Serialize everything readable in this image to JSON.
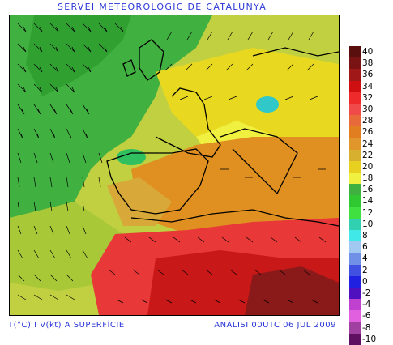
{
  "header": {
    "title": "SERVEI METEOROLÒGIC DE CATALUNYA"
  },
  "footer": {
    "variable_label": "T(°C) I V(kt) A SUPERFÍCIE",
    "analysis_label": "ANÀLISI 00UTC 06 JUL 2009"
  },
  "legend": {
    "items": [
      {
        "label": "40",
        "color": "#5a0f0f"
      },
      {
        "label": "38",
        "color": "#7a1414"
      },
      {
        "label": "36",
        "color": "#a01818"
      },
      {
        "label": "34",
        "color": "#d01010"
      },
      {
        "label": "32",
        "color": "#ee2a2a"
      },
      {
        "label": "30",
        "color": "#f04a4a"
      },
      {
        "label": "28",
        "color": "#e86a3a"
      },
      {
        "label": "26",
        "color": "#e07e20"
      },
      {
        "label": "24",
        "color": "#e0962a"
      },
      {
        "label": "22",
        "color": "#d8b030"
      },
      {
        "label": "20",
        "color": "#e8d020"
      },
      {
        "label": "18",
        "color": "#f0f040"
      },
      {
        "label": "16",
        "color": "#40b040"
      },
      {
        "label": "14",
        "color": "#30c830"
      },
      {
        "label": "12",
        "color": "#40e040"
      },
      {
        "label": "10",
        "color": "#30d0b0"
      },
      {
        "label": "8",
        "color": "#40e8e8"
      },
      {
        "label": "6",
        "color": "#a0c8f0"
      },
      {
        "label": "4",
        "color": "#7090e8"
      },
      {
        "label": "2",
        "color": "#4050e0"
      },
      {
        "label": "0",
        "color": "#2020e0"
      },
      {
        "label": "-2",
        "color": "#5010c0"
      },
      {
        "label": "-4",
        "color": "#c040d0"
      },
      {
        "label": "-6",
        "color": "#e060e0"
      },
      {
        "label": "-8",
        "color": "#a040a0"
      },
      {
        "label": "-10",
        "color": "#601060"
      }
    ]
  }
}
